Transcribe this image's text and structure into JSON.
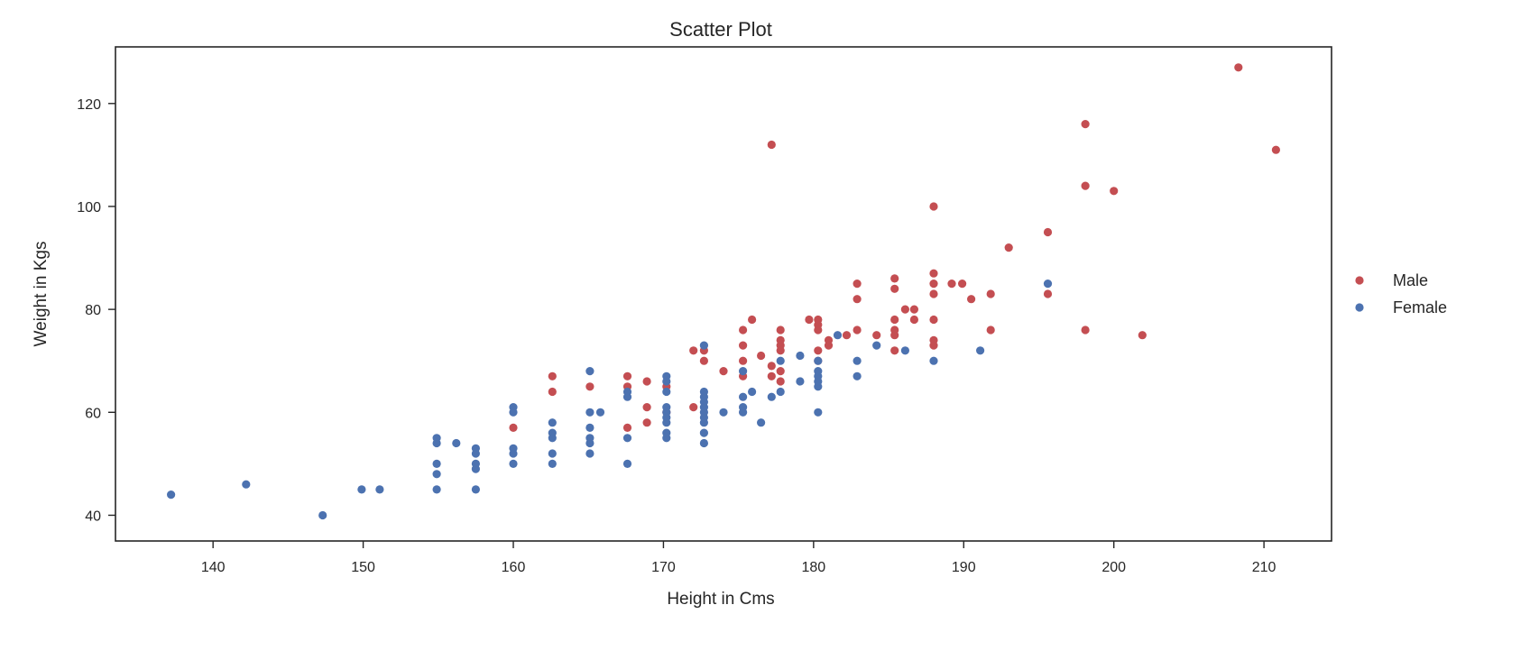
{
  "chart_data": {
    "type": "scatter",
    "title": "Scatter Plot",
    "xlabel": "Height in Cms",
    "ylabel": "Weight in Kgs",
    "xlim": [
      133.5,
      214.5
    ],
    "ylim": [
      35,
      131
    ],
    "xticks": [
      140,
      150,
      160,
      170,
      180,
      190,
      200,
      210
    ],
    "yticks": [
      40,
      60,
      80,
      100,
      120
    ],
    "grid": false,
    "legend_position": "right",
    "series": [
      {
        "name": "Male",
        "color": "#c44e52",
        "points": [
          [
            160.0,
            57
          ],
          [
            162.6,
            64
          ],
          [
            162.6,
            67
          ],
          [
            165.1,
            65
          ],
          [
            167.6,
            57
          ],
          [
            167.6,
            65
          ],
          [
            167.6,
            67
          ],
          [
            168.9,
            58
          ],
          [
            168.9,
            61
          ],
          [
            168.9,
            66
          ],
          [
            170.2,
            60
          ],
          [
            170.2,
            65
          ],
          [
            172.0,
            61
          ],
          [
            172.0,
            72
          ],
          [
            172.7,
            70
          ],
          [
            172.7,
            72
          ],
          [
            174.0,
            68
          ],
          [
            175.3,
            67
          ],
          [
            175.3,
            70
          ],
          [
            175.3,
            73
          ],
          [
            175.3,
            76
          ],
          [
            175.9,
            78
          ],
          [
            176.5,
            71
          ],
          [
            177.2,
            67
          ],
          [
            177.2,
            69
          ],
          [
            177.2,
            112
          ],
          [
            177.8,
            66
          ],
          [
            177.8,
            68
          ],
          [
            177.8,
            72
          ],
          [
            177.8,
            73
          ],
          [
            177.8,
            74
          ],
          [
            177.8,
            76
          ],
          [
            179.7,
            78
          ],
          [
            180.3,
            70
          ],
          [
            180.3,
            72
          ],
          [
            180.3,
            76
          ],
          [
            180.3,
            77
          ],
          [
            180.3,
            78
          ],
          [
            181.0,
            73
          ],
          [
            181.0,
            74
          ],
          [
            182.2,
            75
          ],
          [
            182.9,
            76
          ],
          [
            182.9,
            82
          ],
          [
            182.9,
            85
          ],
          [
            184.2,
            75
          ],
          [
            185.4,
            72
          ],
          [
            185.4,
            75
          ],
          [
            185.4,
            76
          ],
          [
            185.4,
            78
          ],
          [
            185.4,
            84
          ],
          [
            185.4,
            86
          ],
          [
            186.1,
            80
          ],
          [
            186.7,
            78
          ],
          [
            186.7,
            80
          ],
          [
            188.0,
            73
          ],
          [
            188.0,
            74
          ],
          [
            188.0,
            78
          ],
          [
            188.0,
            83
          ],
          [
            188.0,
            85
          ],
          [
            188.0,
            87
          ],
          [
            188.0,
            100
          ],
          [
            189.2,
            85
          ],
          [
            189.9,
            85
          ],
          [
            190.5,
            82
          ],
          [
            191.8,
            76
          ],
          [
            191.8,
            83
          ],
          [
            193.0,
            92
          ],
          [
            195.6,
            83
          ],
          [
            195.6,
            95
          ],
          [
            198.1,
            76
          ],
          [
            198.1,
            104
          ],
          [
            198.1,
            116
          ],
          [
            200.0,
            103
          ],
          [
            201.9,
            75
          ],
          [
            208.3,
            127
          ],
          [
            210.8,
            111
          ]
        ]
      },
      {
        "name": "Female",
        "color": "#4c72b0",
        "points": [
          [
            137.2,
            44
          ],
          [
            142.2,
            46
          ],
          [
            147.3,
            40
          ],
          [
            149.9,
            45
          ],
          [
            151.1,
            45
          ],
          [
            154.9,
            45
          ],
          [
            154.9,
            48
          ],
          [
            154.9,
            50
          ],
          [
            154.9,
            54
          ],
          [
            154.9,
            55
          ],
          [
            156.2,
            54
          ],
          [
            157.5,
            45
          ],
          [
            157.5,
            49
          ],
          [
            157.5,
            50
          ],
          [
            157.5,
            52
          ],
          [
            157.5,
            53
          ],
          [
            160.0,
            50
          ],
          [
            160.0,
            52
          ],
          [
            160.0,
            53
          ],
          [
            160.0,
            60
          ],
          [
            160.0,
            61
          ],
          [
            162.6,
            50
          ],
          [
            162.6,
            52
          ],
          [
            162.6,
            55
          ],
          [
            162.6,
            56
          ],
          [
            162.6,
            58
          ],
          [
            165.1,
            52
          ],
          [
            165.1,
            54
          ],
          [
            165.1,
            55
          ],
          [
            165.1,
            57
          ],
          [
            165.1,
            60
          ],
          [
            165.1,
            68
          ],
          [
            165.8,
            60
          ],
          [
            167.6,
            50
          ],
          [
            167.6,
            55
          ],
          [
            167.6,
            63
          ],
          [
            167.6,
            64
          ],
          [
            170.2,
            55
          ],
          [
            170.2,
            56
          ],
          [
            170.2,
            58
          ],
          [
            170.2,
            59
          ],
          [
            170.2,
            60
          ],
          [
            170.2,
            61
          ],
          [
            170.2,
            64
          ],
          [
            170.2,
            66
          ],
          [
            170.2,
            67
          ],
          [
            172.7,
            54
          ],
          [
            172.7,
            56
          ],
          [
            172.7,
            58
          ],
          [
            172.7,
            59
          ],
          [
            172.7,
            60
          ],
          [
            172.7,
            61
          ],
          [
            172.7,
            62
          ],
          [
            172.7,
            63
          ],
          [
            172.7,
            64
          ],
          [
            172.7,
            73
          ],
          [
            174.0,
            60
          ],
          [
            175.3,
            60
          ],
          [
            175.3,
            61
          ],
          [
            175.3,
            63
          ],
          [
            175.3,
            68
          ],
          [
            175.9,
            64
          ],
          [
            176.5,
            58
          ],
          [
            177.2,
            63
          ],
          [
            177.8,
            64
          ],
          [
            177.8,
            70
          ],
          [
            179.1,
            66
          ],
          [
            179.1,
            71
          ],
          [
            180.3,
            60
          ],
          [
            180.3,
            65
          ],
          [
            180.3,
            66
          ],
          [
            180.3,
            67
          ],
          [
            180.3,
            68
          ],
          [
            180.3,
            70
          ],
          [
            181.6,
            75
          ],
          [
            182.9,
            67
          ],
          [
            182.9,
            70
          ],
          [
            184.2,
            73
          ],
          [
            186.1,
            72
          ],
          [
            188.0,
            70
          ],
          [
            191.1,
            72
          ],
          [
            195.6,
            85
          ]
        ]
      }
    ]
  }
}
